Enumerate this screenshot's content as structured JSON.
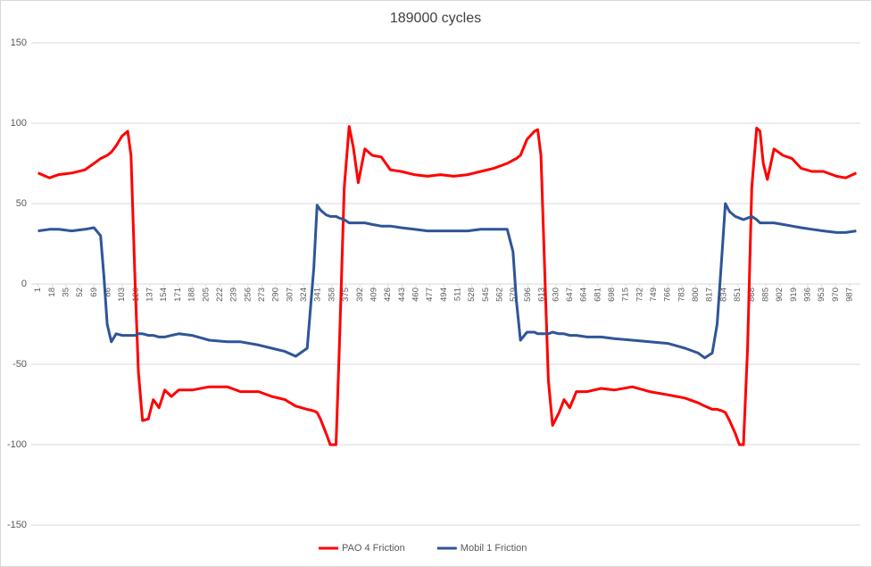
{
  "chart_data": {
    "type": "line",
    "title": "189000 cycles",
    "x": [
      1,
      15,
      26,
      42,
      58,
      69,
      77,
      81,
      85,
      90,
      96,
      103,
      110,
      114,
      119,
      123,
      128,
      135,
      141,
      148,
      155,
      163,
      172,
      188,
      209,
      231,
      247,
      269,
      285,
      301,
      314,
      328,
      336,
      340,
      344,
      351,
      356,
      363,
      367,
      373,
      379,
      384,
      390,
      398,
      407,
      418,
      429,
      442,
      458,
      474,
      490,
      506,
      523,
      539,
      555,
      571,
      578,
      582,
      587,
      595,
      604,
      608,
      612,
      617,
      621,
      626,
      634,
      640,
      647,
      655,
      668,
      685,
      701,
      723,
      744,
      766,
      787,
      803,
      811,
      820,
      826,
      832,
      836,
      841,
      848,
      853,
      858,
      863,
      868,
      874,
      878,
      882,
      887,
      895,
      906,
      917,
      928,
      941,
      955,
      971,
      982,
      995
    ],
    "series": [
      {
        "name": "PAO 4 Friction",
        "color": "#ff0000",
        "values": [
          69,
          66,
          68,
          69,
          71,
          75,
          78,
          79,
          80,
          82,
          86,
          92,
          95,
          80,
          0,
          -55,
          -85,
          -84,
          -72,
          -77,
          -66,
          -70,
          -66,
          -66,
          -64,
          -64,
          -67,
          -67,
          -70,
          -72,
          -76,
          -78,
          -79,
          -80,
          -84,
          -93,
          -100,
          -100,
          -40,
          60,
          98,
          85,
          63,
          84,
          80,
          79,
          71,
          70,
          68,
          67,
          68,
          67,
          68,
          70,
          72,
          75,
          77,
          78,
          80,
          90,
          95,
          96,
          80,
          0,
          -60,
          -88,
          -80,
          -72,
          -77,
          -67,
          -67,
          -65,
          -66,
          -64,
          -67,
          -69,
          -71,
          -74,
          -76,
          -78,
          -78,
          -79,
          -80,
          -85,
          -93,
          -100,
          -100,
          -40,
          60,
          97,
          95,
          75,
          65,
          84,
          80,
          78,
          72,
          70,
          70,
          67,
          66,
          69
        ]
      },
      {
        "name": "Mobil 1 Friction",
        "color": "#2f5597",
        "values": [
          33,
          34,
          34,
          33,
          34,
          35,
          30,
          5,
          -25,
          -36,
          -31,
          -32,
          -32,
          -32,
          -32,
          -31,
          -31,
          -32,
          -32,
          -33,
          -33,
          -32,
          -31,
          -32,
          -35,
          -36,
          -36,
          -38,
          -40,
          -42,
          -45,
          -40,
          10,
          49,
          46,
          43,
          42,
          42,
          41,
          40,
          38,
          38,
          38,
          38,
          37,
          36,
          36,
          35,
          34,
          33,
          33,
          33,
          33,
          34,
          34,
          34,
          20,
          -10,
          -35,
          -30,
          -30,
          -31,
          -31,
          -31,
          -31,
          -30,
          -31,
          -31,
          -32,
          -32,
          -33,
          -33,
          -34,
          -35,
          -36,
          -37,
          -40,
          -43,
          -46,
          -43,
          -25,
          20,
          50,
          45,
          42,
          41,
          40,
          41,
          42,
          40,
          38,
          38,
          38,
          38,
          37,
          36,
          35,
          34,
          33,
          32,
          32,
          33
        ]
      }
    ],
    "xlim": [
      -4,
      1000
    ],
    "xticks": [
      1,
      18,
      35,
      52,
      69,
      86,
      103,
      120,
      137,
      154,
      171,
      188,
      205,
      222,
      239,
      256,
      273,
      290,
      307,
      324,
      341,
      358,
      375,
      392,
      409,
      426,
      443,
      460,
      477,
      494,
      511,
      528,
      545,
      562,
      579,
      596,
      613,
      630,
      647,
      664,
      681,
      698,
      715,
      732,
      749,
      766,
      783,
      800,
      817,
      834,
      851,
      868,
      885,
      902,
      919,
      936,
      953,
      970,
      987
    ],
    "ylim": [
      -150,
      150
    ],
    "yticks": [
      150,
      100,
      50,
      0,
      -50,
      -100,
      -150
    ],
    "grid": true,
    "legend": "bottom"
  }
}
